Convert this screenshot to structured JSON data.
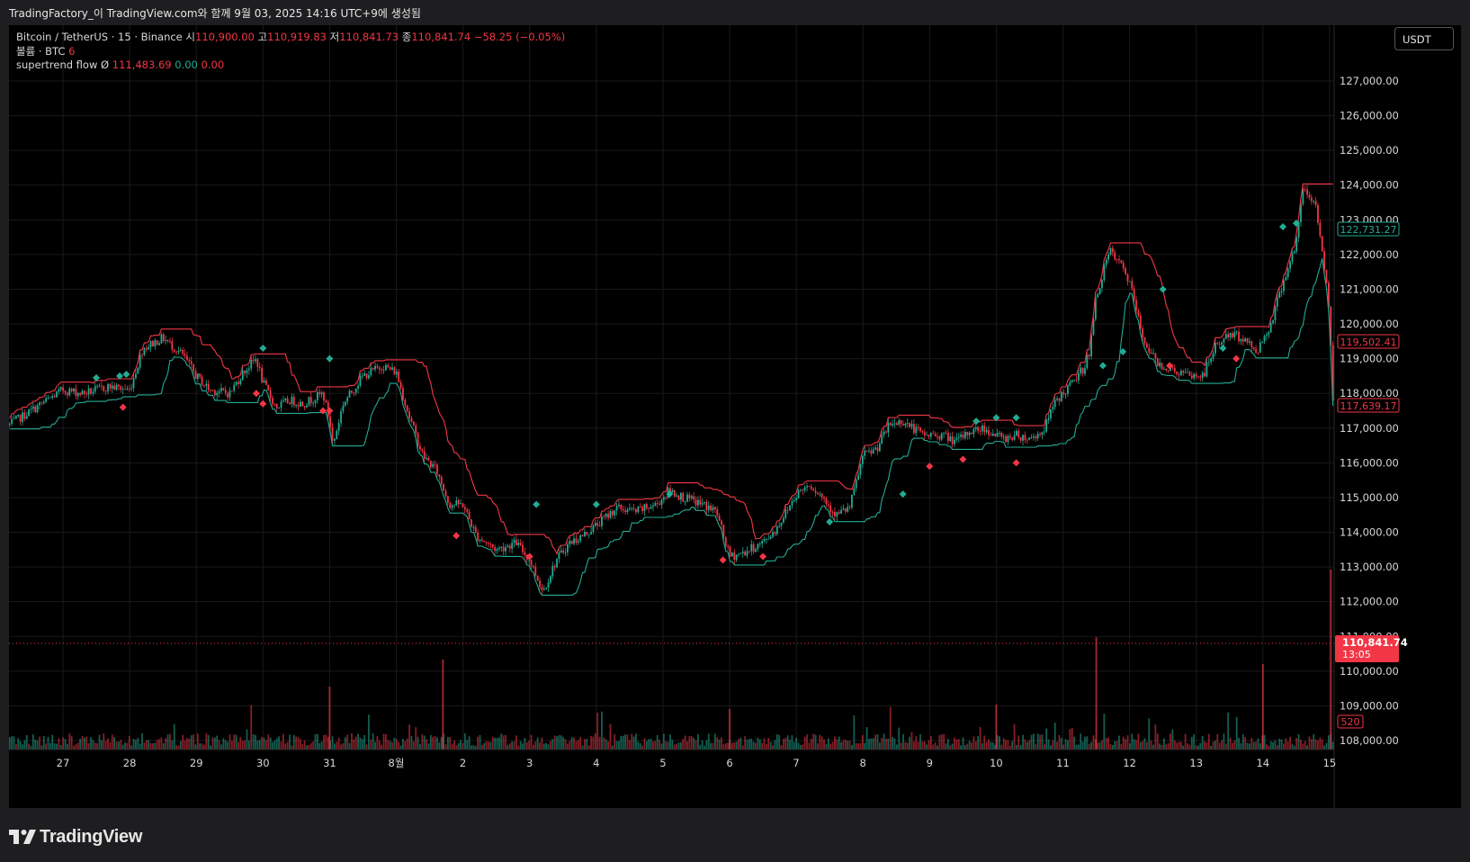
{
  "header": {
    "credit": "TradingFactory_이 TradingView.com와 함께 9월 03, 2025 14:16 UTC+9에 생성됨"
  },
  "legend": {
    "symbol": "Bitcoin / TetherUS · 15 · Binance",
    "open_label": "시",
    "open_value": "110,900.00",
    "high_label": "고",
    "high_value": "110,919.83",
    "low_label": "저",
    "low_value": "110,841.73",
    "close_label": "종",
    "close_value": "110,841.74",
    "change": "−58.25 (−0.05%)",
    "volume_label": "볼륨 · BTC",
    "volume_value": "6",
    "indicator_label": "supertrend flow",
    "indicator_symbol": "Ø",
    "indicator_v1": "111,483.69",
    "indicator_v2": "0.00",
    "indicator_v3": "0.00"
  },
  "currency_button": "USDT",
  "branding": "TradingView",
  "colors": {
    "up": "#22ab94",
    "down": "#f23645",
    "background": "#000000",
    "panel": "#1e1e20"
  },
  "chart_data": {
    "type": "candlestick",
    "title": "Bitcoin / TetherUS · 15 · Binance",
    "ylim": [
      107700,
      128200
    ],
    "y_ticks": [
      108000,
      109000,
      110000,
      111000,
      112000,
      113000,
      114000,
      115000,
      116000,
      117000,
      118000,
      119000,
      120000,
      121000,
      122000,
      123000,
      124000,
      125000,
      126000,
      127000
    ],
    "y_tick_labels": [
      "108,000.00",
      "109,000.00",
      "110,000.00",
      "111,000.00",
      "112,000.00",
      "113,000.00",
      "114,000.00",
      "115,000.00",
      "116,000.00",
      "117,000.00",
      "118,000.00",
      "119,000.00",
      "120,000.00",
      "121,000.00",
      "122,000.00",
      "123,000.00",
      "124,000.00",
      "125,000.00",
      "126,000.00",
      "127,000.00"
    ],
    "x_ticks": [
      "27",
      "28",
      "29",
      "30",
      "31",
      "8월",
      "2",
      "3",
      "4",
      "5",
      "6",
      "7",
      "8",
      "9",
      "10",
      "11",
      "12",
      "13",
      "14",
      "15"
    ],
    "x_start_day": 26.2,
    "x_end_day": 46.05,
    "price_path": [
      [
        26.2,
        117100
      ],
      [
        26.6,
        117600
      ],
      [
        27.0,
        118100
      ],
      [
        27.3,
        118000
      ],
      [
        27.7,
        118200
      ],
      [
        28.0,
        118100
      ],
      [
        28.2,
        119300
      ],
      [
        28.5,
        119600
      ],
      [
        28.8,
        119100
      ],
      [
        29.0,
        118500
      ],
      [
        29.2,
        118100
      ],
      [
        29.5,
        118000
      ],
      [
        29.7,
        118600
      ],
      [
        29.9,
        119000
      ],
      [
        30.0,
        118300
      ],
      [
        30.2,
        117600
      ],
      [
        30.4,
        117800
      ],
      [
        30.6,
        117700
      ],
      [
        30.9,
        118000
      ],
      [
        31.0,
        117200
      ],
      [
        31.05,
        116500
      ],
      [
        31.2,
        117700
      ],
      [
        31.5,
        118500
      ],
      [
        31.8,
        118800
      ],
      [
        32.0,
        118600
      ],
      [
        32.2,
        117300
      ],
      [
        32.4,
        116200
      ],
      [
        32.6,
        115800
      ],
      [
        32.8,
        114800
      ],
      [
        33.0,
        114800
      ],
      [
        33.2,
        113900
      ],
      [
        33.5,
        113500
      ],
      [
        33.8,
        113700
      ],
      [
        34.0,
        113200
      ],
      [
        34.2,
        112300
      ],
      [
        34.4,
        113200
      ],
      [
        34.6,
        113700
      ],
      [
        34.8,
        113900
      ],
      [
        35.0,
        114200
      ],
      [
        35.3,
        114700
      ],
      [
        35.6,
        114600
      ],
      [
        35.9,
        114800
      ],
      [
        36.1,
        115200
      ],
      [
        36.3,
        115000
      ],
      [
        36.6,
        114800
      ],
      [
        36.8,
        114600
      ],
      [
        37.0,
        113300
      ],
      [
        37.2,
        113400
      ],
      [
        37.5,
        113700
      ],
      [
        37.7,
        114100
      ],
      [
        38.0,
        115100
      ],
      [
        38.2,
        115400
      ],
      [
        38.4,
        115000
      ],
      [
        38.6,
        114500
      ],
      [
        38.8,
        114700
      ],
      [
        39.0,
        116200
      ],
      [
        39.2,
        116400
      ],
      [
        39.4,
        117100
      ],
      [
        39.6,
        117200
      ],
      [
        39.9,
        116800
      ],
      [
        40.2,
        116800
      ],
      [
        40.4,
        116600
      ],
      [
        40.6,
        116900
      ],
      [
        40.8,
        117000
      ],
      [
        41.1,
        116700
      ],
      [
        41.3,
        116800
      ],
      [
        41.5,
        116700
      ],
      [
        41.7,
        116900
      ],
      [
        41.9,
        117800
      ],
      [
        42.1,
        118200
      ],
      [
        42.3,
        118700
      ],
      [
        42.4,
        119200
      ],
      [
        42.5,
        120800
      ],
      [
        42.7,
        122100
      ],
      [
        42.9,
        121600
      ],
      [
        43.0,
        121200
      ],
      [
        43.2,
        119600
      ],
      [
        43.4,
        118900
      ],
      [
        43.6,
        118700
      ],
      [
        43.9,
        118500
      ],
      [
        44.1,
        118500
      ],
      [
        44.3,
        119400
      ],
      [
        44.5,
        119700
      ],
      [
        44.7,
        119600
      ],
      [
        44.9,
        119200
      ],
      [
        45.1,
        119900
      ],
      [
        45.3,
        121200
      ],
      [
        45.5,
        122300
      ],
      [
        45.6,
        123900
      ],
      [
        45.8,
        123400
      ],
      [
        45.9,
        121900
      ],
      [
        46.0,
        120400
      ],
      [
        46.05,
        117900
      ]
    ],
    "last_price": "110,841.74",
    "countdown": "13:05",
    "price_labels": [
      {
        "text": "122,731.27",
        "color": "#22ab94"
      },
      {
        "text": "119,502.41",
        "color": "#f23645"
      },
      {
        "text": "117,639.17",
        "color": "#f23645"
      },
      {
        "text": "110,841.74",
        "color": "#f23645"
      }
    ],
    "volume_label": "520",
    "annotation_marks": {
      "green": [
        [
          27.5,
          118450
        ],
        [
          27.85,
          118500
        ],
        [
          27.95,
          118550
        ],
        [
          30.0,
          119300
        ],
        [
          31.0,
          119000
        ],
        [
          34.1,
          114800
        ],
        [
          35.0,
          114800
        ],
        [
          36.1,
          115100
        ],
        [
          38.5,
          114300
        ],
        [
          39.6,
          115100
        ],
        [
          40.7,
          117200
        ],
        [
          41.0,
          117300
        ],
        [
          41.3,
          117300
        ],
        [
          42.6,
          118800
        ],
        [
          42.9,
          119200
        ],
        [
          43.5,
          121000
        ],
        [
          44.4,
          119300
        ],
        [
          45.3,
          122800
        ],
        [
          45.5,
          122900
        ]
      ],
      "red": [
        [
          27.9,
          117600
        ],
        [
          29.9,
          118000
        ],
        [
          30.0,
          117700
        ],
        [
          30.9,
          117500
        ],
        [
          31.0,
          117500
        ],
        [
          32.9,
          113900
        ],
        [
          34.0,
          113300
        ],
        [
          36.9,
          113200
        ],
        [
          37.5,
          113300
        ],
        [
          40.0,
          115900
        ],
        [
          40.5,
          116100
        ],
        [
          41.3,
          116000
        ],
        [
          43.6,
          118800
        ],
        [
          44.6,
          119000
        ]
      ]
    }
  }
}
